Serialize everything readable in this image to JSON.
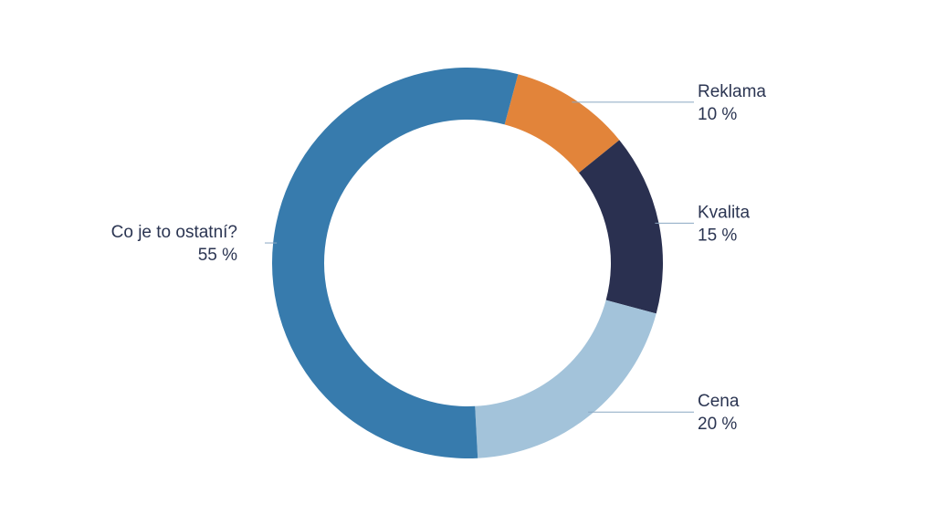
{
  "chart_data": {
    "type": "pie",
    "style": "donut",
    "unit": "%",
    "slices": [
      {
        "label": "Reklama",
        "value": 10,
        "value_label": "10 %",
        "color": "#e2843a"
      },
      {
        "label": "Kvalita",
        "value": 15,
        "value_label": "15 %",
        "color": "#2a3050"
      },
      {
        "label": "Cena",
        "value": 20,
        "value_label": "20 %",
        "color": "#a3c3da"
      },
      {
        "label": "Co je to ostatní?",
        "value": 55,
        "value_label": "55 %",
        "color": "#377bad"
      }
    ],
    "start_angle_deg": 15,
    "direction": "clockwise",
    "legend": "none",
    "labels": "outside"
  }
}
